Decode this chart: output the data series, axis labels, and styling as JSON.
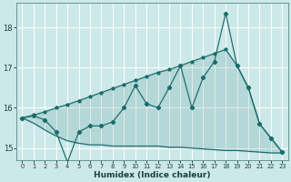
{
  "xlabel": "Humidex (Indice chaleur)",
  "bg_color": "#cce8e8",
  "line_color": "#1a6b6b",
  "grid_color": "#b8d8d8",
  "xlim": [
    -0.5,
    23.5
  ],
  "ylim": [
    14.7,
    18.6
  ],
  "yticks": [
    15,
    16,
    17,
    18
  ],
  "xtick_labels": [
    "0",
    "1",
    "2",
    "3",
    "4",
    "5",
    "6",
    "7",
    "8",
    "9",
    "10",
    "11",
    "12",
    "13",
    "14",
    "15",
    "16",
    "17",
    "18",
    "19",
    "20",
    "21",
    "22",
    "23"
  ],
  "series_main": [
    15.75,
    15.8,
    15.7,
    15.4,
    14.65,
    15.4,
    15.55,
    15.55,
    15.65,
    16.0,
    16.55,
    16.1,
    16.0,
    16.5,
    17.05,
    16.0,
    16.75,
    17.15,
    18.35,
    17.05,
    16.5,
    15.6,
    15.25,
    14.9
  ],
  "series_upper": [
    15.75,
    15.82,
    15.9,
    16.0,
    16.08,
    16.18,
    16.28,
    16.38,
    16.48,
    16.58,
    16.68,
    16.78,
    16.88,
    16.95,
    17.05,
    17.15,
    17.25,
    17.35,
    17.45,
    17.05,
    16.5,
    15.6,
    15.25,
    14.9
  ],
  "series_lower": [
    15.75,
    15.62,
    15.45,
    15.3,
    15.18,
    15.12,
    15.08,
    15.08,
    15.05,
    15.05,
    15.05,
    15.05,
    15.05,
    15.02,
    15.02,
    15.0,
    14.98,
    14.96,
    14.94,
    14.94,
    14.92,
    14.9,
    14.88,
    14.88
  ]
}
